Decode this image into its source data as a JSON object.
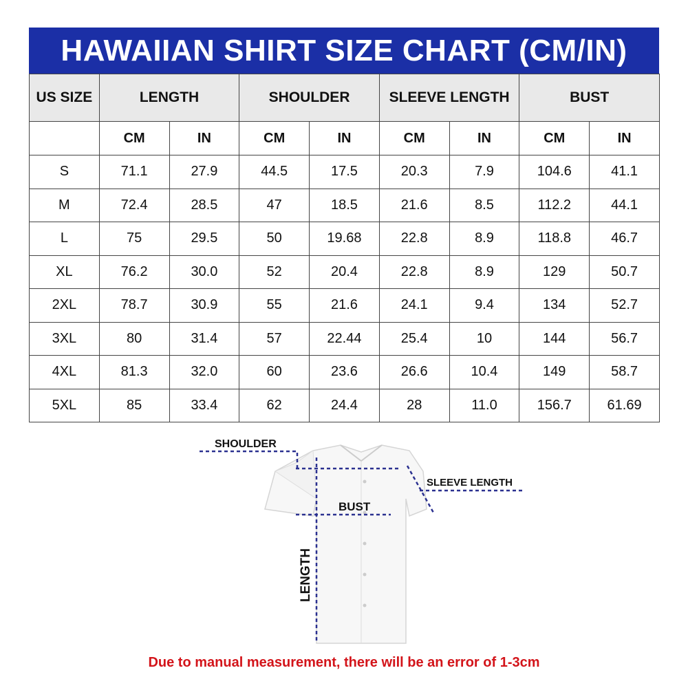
{
  "title": "HAWAIIAN SHIRT SIZE CHART (CM/IN)",
  "headers": {
    "size": "US SIZE",
    "groups": [
      "LENGTH",
      "SHOULDER",
      "SLEEVE LENGTH",
      "BUST"
    ],
    "units": [
      "CM",
      "IN",
      "CM",
      "IN",
      "CM",
      "IN",
      "CM",
      "IN"
    ]
  },
  "rows": [
    {
      "size": "S",
      "values": [
        "71.1",
        "27.9",
        "44.5",
        "17.5",
        "20.3",
        "7.9",
        "104.6",
        "41.1"
      ]
    },
    {
      "size": "M",
      "values": [
        "72.4",
        "28.5",
        "47",
        "18.5",
        "21.6",
        "8.5",
        "112.2",
        "44.1"
      ]
    },
    {
      "size": "L",
      "values": [
        "75",
        "29.5",
        "50",
        "19.68",
        "22.8",
        "8.9",
        "118.8",
        "46.7"
      ]
    },
    {
      "size": "XL",
      "values": [
        "76.2",
        "30.0",
        "52",
        "20.4",
        "22.8",
        "8.9",
        "129",
        "50.7"
      ]
    },
    {
      "size": "2XL",
      "values": [
        "78.7",
        "30.9",
        "55",
        "21.6",
        "24.1",
        "9.4",
        "134",
        "52.7"
      ]
    },
    {
      "size": "3XL",
      "values": [
        "80",
        "31.4",
        "57",
        "22.44",
        "25.4",
        "10",
        "144",
        "56.7"
      ]
    },
    {
      "size": "4XL",
      "values": [
        "81.3",
        "32.0",
        "60",
        "23.6",
        "26.6",
        "10.4",
        "149",
        "58.7"
      ]
    },
    {
      "size": "5XL",
      "values": [
        "85",
        "33.4",
        "62",
        "24.4",
        "28",
        "11.0",
        "156.7",
        "61.69"
      ]
    }
  ],
  "diagram": {
    "shoulder": "SHOULDER",
    "sleeve": "SLEEVE LENGTH",
    "bust": "BUST",
    "length": "LENGTH"
  },
  "note": "Due to manual measurement, there will be an error of 1-3cm",
  "colors": {
    "header_blue": "#1b2fa6",
    "measure_line": "#2b3190",
    "note_red": "#d3141a"
  }
}
